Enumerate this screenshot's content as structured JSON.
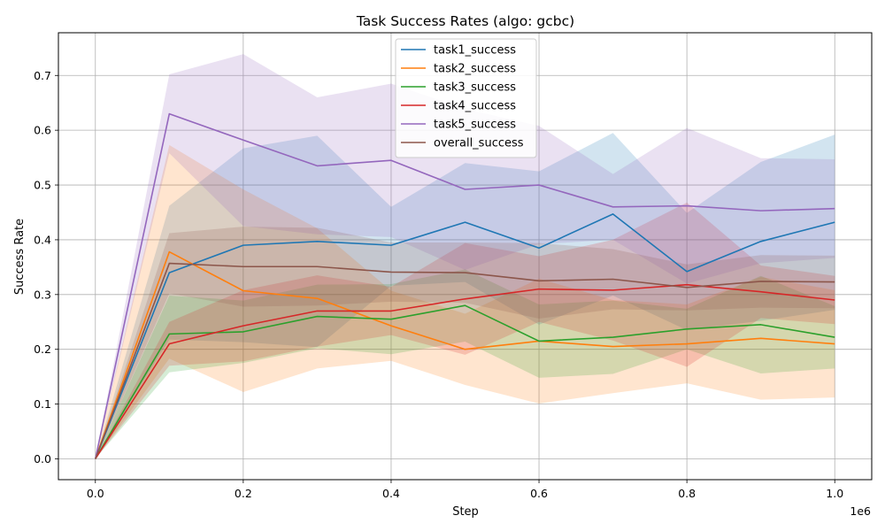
{
  "chart_data": {
    "type": "line",
    "title": "Task Success Rates (algo: gcbc)",
    "xlabel": "Step",
    "ylabel": "Success Rate",
    "x_scale_label": "1e6",
    "xlim": [
      -0.05,
      1.05
    ],
    "ylim": [
      -0.038,
      0.778
    ],
    "x_ticks": [
      0.0,
      0.2,
      0.4,
      0.6,
      0.8,
      1.0
    ],
    "x_tick_labels": [
      "0.0",
      "0.2",
      "0.4",
      "0.6",
      "0.8",
      "1.0"
    ],
    "y_ticks": [
      0.0,
      0.1,
      0.2,
      0.3,
      0.4,
      0.5,
      0.6,
      0.7
    ],
    "y_tick_labels": [
      "0.0",
      "0.1",
      "0.2",
      "0.3",
      "0.4",
      "0.5",
      "0.6",
      "0.7"
    ],
    "grid": true,
    "legend_position": "top-center",
    "x": [
      0.0,
      0.1,
      0.2,
      0.3,
      0.4,
      0.5,
      0.6,
      0.7,
      0.8,
      0.9,
      1.0
    ],
    "series": [
      {
        "name": "task1_success",
        "color": "#1f77b4",
        "values": [
          0.0,
          0.34,
          0.39,
          0.397,
          0.39,
          0.432,
          0.385,
          0.447,
          0.342,
          0.397,
          0.432
        ],
        "lower": [
          0.0,
          0.218,
          0.213,
          0.204,
          0.316,
          0.323,
          0.245,
          0.298,
          0.235,
          0.252,
          0.272
        ],
        "upper": [
          0.0,
          0.462,
          0.567,
          0.59,
          0.46,
          0.54,
          0.525,
          0.595,
          0.449,
          0.542,
          0.592
        ]
      },
      {
        "name": "task2_success",
        "color": "#ff7f0e",
        "values": [
          0.0,
          0.378,
          0.307,
          0.293,
          0.243,
          0.2,
          0.215,
          0.205,
          0.21,
          0.22,
          0.21
        ],
        "lower": [
          0.0,
          0.183,
          0.122,
          0.165,
          0.179,
          0.135,
          0.101,
          0.12,
          0.138,
          0.108,
          0.112
        ],
        "upper": [
          0.0,
          0.573,
          0.492,
          0.421,
          0.307,
          0.265,
          0.329,
          0.29,
          0.282,
          0.332,
          0.308
        ]
      },
      {
        "name": "task3_success",
        "color": "#2ca02c",
        "values": [
          0.0,
          0.228,
          0.232,
          0.26,
          0.255,
          0.28,
          0.215,
          0.222,
          0.237,
          0.245,
          0.222
        ],
        "lower": [
          0.0,
          0.158,
          0.175,
          0.202,
          0.191,
          0.214,
          0.148,
          0.155,
          0.2,
          0.156,
          0.165
        ],
        "upper": [
          0.0,
          0.298,
          0.289,
          0.318,
          0.319,
          0.346,
          0.282,
          0.289,
          0.274,
          0.334,
          0.279
        ]
      },
      {
        "name": "task4_success",
        "color": "#d62728",
        "values": [
          0.0,
          0.21,
          0.243,
          0.27,
          0.27,
          0.292,
          0.31,
          0.308,
          0.318,
          0.305,
          0.29
        ],
        "lower": [
          0.0,
          0.17,
          0.178,
          0.205,
          0.226,
          0.19,
          0.25,
          0.216,
          0.168,
          0.257,
          0.246
        ],
        "upper": [
          0.0,
          0.25,
          0.308,
          0.335,
          0.314,
          0.394,
          0.37,
          0.4,
          0.468,
          0.353,
          0.334
        ]
      },
      {
        "name": "task5_success",
        "color": "#9467bd",
        "values": [
          0.0,
          0.63,
          0.582,
          0.535,
          0.545,
          0.492,
          0.5,
          0.46,
          0.462,
          0.453,
          0.457
        ],
        "lower": [
          0.0,
          0.558,
          0.425,
          0.41,
          0.405,
          0.345,
          0.392,
          0.4,
          0.32,
          0.357,
          0.367
        ],
        "upper": [
          0.0,
          0.702,
          0.739,
          0.66,
          0.685,
          0.639,
          0.608,
          0.52,
          0.604,
          0.549,
          0.547
        ]
      },
      {
        "name": "overall_success",
        "color": "#8c564b",
        "values": [
          0.0,
          0.357,
          0.351,
          0.351,
          0.341,
          0.34,
          0.325,
          0.328,
          0.313,
          0.324,
          0.323
        ],
        "lower": [
          0.0,
          0.302,
          0.278,
          0.28,
          0.287,
          0.285,
          0.256,
          0.273,
          0.271,
          0.276,
          0.275
        ],
        "upper": [
          0.0,
          0.412,
          0.424,
          0.422,
          0.395,
          0.395,
          0.394,
          0.383,
          0.355,
          0.372,
          0.371
        ]
      }
    ]
  }
}
